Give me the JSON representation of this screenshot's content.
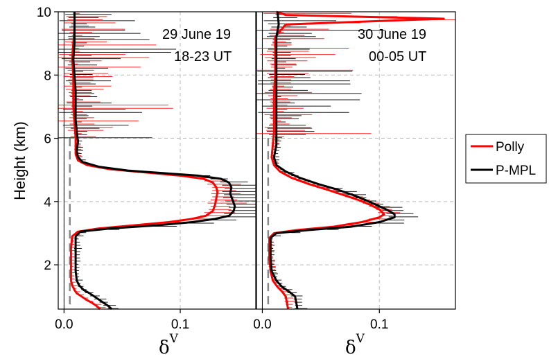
{
  "chart_data": [
    {
      "type": "line",
      "panel": "left",
      "annotation_line1": "29 June 19",
      "annotation_line2": "18-23 UT",
      "ylabel": "Height (km)",
      "xlabel": "δ",
      "xlabel_sup": "V",
      "xlim": [
        -0.005,
        0.165
      ],
      "ylim": [
        0.6,
        10
      ],
      "x_ticks": [
        0.0,
        0.1
      ],
      "x_tick_labels": [
        "0.0",
        "0.1"
      ],
      "y_ticks": [
        2,
        4,
        6,
        8,
        10
      ],
      "y_tick_labels": [
        "2",
        "4",
        "6",
        "8",
        "10"
      ],
      "grid": true,
      "reference_x": 0.005,
      "series": [
        {
          "name": "Polly",
          "color": "#ff0000",
          "points": [
            [
              0.031,
              0.6
            ],
            [
              0.028,
              0.7
            ],
            [
              0.024,
              0.8
            ],
            [
              0.019,
              0.9
            ],
            [
              0.015,
              1.0
            ],
            [
              0.011,
              1.1
            ],
            [
              0.009,
              1.2
            ],
            [
              0.007,
              1.35
            ],
            [
              0.006,
              1.5
            ],
            [
              0.006,
              2.0
            ],
            [
              0.006,
              2.5
            ],
            [
              0.007,
              2.9
            ],
            [
              0.012,
              3.05
            ],
            [
              0.03,
              3.15
            ],
            [
              0.06,
              3.25
            ],
            [
              0.09,
              3.35
            ],
            [
              0.11,
              3.45
            ],
            [
              0.122,
              3.55
            ],
            [
              0.128,
              3.7
            ],
            [
              0.13,
              3.9
            ],
            [
              0.131,
              4.1
            ],
            [
              0.132,
              4.3
            ],
            [
              0.131,
              4.45
            ],
            [
              0.128,
              4.6
            ],
            [
              0.12,
              4.72
            ],
            [
              0.1,
              4.82
            ],
            [
              0.07,
              4.92
            ],
            [
              0.04,
              5.02
            ],
            [
              0.02,
              5.15
            ],
            [
              0.012,
              5.3
            ],
            [
              0.01,
              5.5
            ],
            [
              0.01,
              6.0
            ],
            [
              0.009,
              6.5
            ],
            [
              0.008,
              7.0
            ],
            [
              0.008,
              7.5
            ],
            [
              0.008,
              8.0
            ],
            [
              0.007,
              8.5
            ],
            [
              0.008,
              9.0
            ],
            [
              0.009,
              9.5
            ],
            [
              0.009,
              10.0
            ]
          ],
          "error_bars": true
        },
        {
          "name": "P-MPL",
          "color": "#000000",
          "points": [
            [
              0.041,
              0.6
            ],
            [
              0.038,
              0.7
            ],
            [
              0.034,
              0.8
            ],
            [
              0.03,
              0.9
            ],
            [
              0.026,
              1.0
            ],
            [
              0.022,
              1.1
            ],
            [
              0.017,
              1.2
            ],
            [
              0.013,
              1.35
            ],
            [
              0.011,
              1.5
            ],
            [
              0.01,
              1.8
            ],
            [
              0.01,
              2.2
            ],
            [
              0.01,
              2.6
            ],
            [
              0.01,
              2.9
            ],
            [
              0.014,
              3.05
            ],
            [
              0.04,
              3.15
            ],
            [
              0.08,
              3.25
            ],
            [
              0.11,
              3.35
            ],
            [
              0.13,
              3.45
            ],
            [
              0.142,
              3.55
            ],
            [
              0.146,
              3.7
            ],
            [
              0.147,
              3.85
            ],
            [
              0.145,
              4.05
            ],
            [
              0.143,
              4.25
            ],
            [
              0.144,
              4.45
            ],
            [
              0.142,
              4.6
            ],
            [
              0.135,
              4.72
            ],
            [
              0.115,
              4.82
            ],
            [
              0.085,
              4.9
            ],
            [
              0.055,
              4.98
            ],
            [
              0.03,
              5.1
            ],
            [
              0.016,
              5.25
            ],
            [
              0.012,
              5.4
            ],
            [
              0.011,
              5.6
            ],
            [
              0.012,
              5.9
            ],
            [
              0.011,
              6.2
            ],
            [
              0.01,
              6.6
            ],
            [
              0.01,
              7.0
            ],
            [
              0.01,
              7.5
            ],
            [
              0.009,
              8.0
            ],
            [
              0.008,
              8.5
            ],
            [
              0.009,
              9.0
            ],
            [
              0.009,
              9.5
            ],
            [
              0.009,
              10.0
            ]
          ],
          "error_bars": true
        }
      ]
    },
    {
      "type": "line",
      "panel": "right",
      "annotation_line1": "30 June 19",
      "annotation_line2": "00-05 UT",
      "xlabel": "δ",
      "xlabel_sup": "V",
      "xlim": [
        -0.005,
        0.165
      ],
      "ylim": [
        0.6,
        10
      ],
      "x_ticks": [
        0.0,
        0.1
      ],
      "x_tick_labels": [
        "0.0",
        "0.1"
      ],
      "grid": true,
      "reference_x": 0.005,
      "series": [
        {
          "name": "Polly",
          "color": "#ff0000",
          "points": [
            [
              0.022,
              0.6
            ],
            [
              0.021,
              0.8
            ],
            [
              0.02,
              1.0
            ],
            [
              0.017,
              1.15
            ],
            [
              0.013,
              1.3
            ],
            [
              0.009,
              1.5
            ],
            [
              0.007,
              1.8
            ],
            [
              0.006,
              2.2
            ],
            [
              0.006,
              2.6
            ],
            [
              0.006,
              2.85
            ],
            [
              0.01,
              3.0
            ],
            [
              0.03,
              3.1
            ],
            [
              0.06,
              3.2
            ],
            [
              0.085,
              3.35
            ],
            [
              0.1,
              3.5
            ],
            [
              0.104,
              3.6
            ],
            [
              0.1,
              3.75
            ],
            [
              0.092,
              3.9
            ],
            [
              0.082,
              4.05
            ],
            [
              0.07,
              4.2
            ],
            [
              0.055,
              4.38
            ],
            [
              0.04,
              4.55
            ],
            [
              0.025,
              4.75
            ],
            [
              0.015,
              4.95
            ],
            [
              0.01,
              5.15
            ],
            [
              0.008,
              5.4
            ],
            [
              0.009,
              5.8
            ],
            [
              0.01,
              6.2
            ],
            [
              0.01,
              6.8
            ],
            [
              0.01,
              7.4
            ],
            [
              0.011,
              8.0
            ],
            [
              0.011,
              8.6
            ],
            [
              0.011,
              9.2
            ],
            [
              0.02,
              9.6
            ],
            [
              0.155,
              9.78
            ],
            [
              0.02,
              9.9
            ],
            [
              0.012,
              10.0
            ]
          ],
          "error_bars": true
        },
        {
          "name": "P-MPL",
          "color": "#000000",
          "points": [
            [
              0.03,
              0.6
            ],
            [
              0.029,
              0.8
            ],
            [
              0.028,
              1.0
            ],
            [
              0.023,
              1.15
            ],
            [
              0.017,
              1.3
            ],
            [
              0.012,
              1.5
            ],
            [
              0.008,
              1.8
            ],
            [
              0.007,
              2.2
            ],
            [
              0.007,
              2.6
            ],
            [
              0.007,
              2.85
            ],
            [
              0.012,
              3.0
            ],
            [
              0.04,
              3.1
            ],
            [
              0.075,
              3.2
            ],
            [
              0.1,
              3.35
            ],
            [
              0.113,
              3.5
            ],
            [
              0.113,
              3.6
            ],
            [
              0.106,
              3.75
            ],
            [
              0.097,
              3.9
            ],
            [
              0.088,
              4.05
            ],
            [
              0.078,
              4.2
            ],
            [
              0.064,
              4.38
            ],
            [
              0.048,
              4.55
            ],
            [
              0.032,
              4.75
            ],
            [
              0.02,
              4.95
            ],
            [
              0.012,
              5.15
            ],
            [
              0.01,
              5.4
            ],
            [
              0.012,
              5.8
            ],
            [
              0.012,
              6.2
            ],
            [
              0.012,
              6.8
            ],
            [
              0.012,
              7.4
            ],
            [
              0.012,
              8.0
            ],
            [
              0.012,
              8.6
            ],
            [
              0.012,
              9.2
            ],
            [
              0.014,
              9.6
            ],
            [
              0.013,
              10.0
            ]
          ],
          "error_bars": true
        }
      ]
    }
  ],
  "legend": {
    "position": "right",
    "items": [
      {
        "label": "Polly",
        "color": "#ff0000"
      },
      {
        "label": "P-MPL",
        "color": "#000000"
      }
    ]
  },
  "colors": {
    "grid": "#bbbbbb",
    "reference_line": "#888888",
    "axis": "#000000"
  }
}
